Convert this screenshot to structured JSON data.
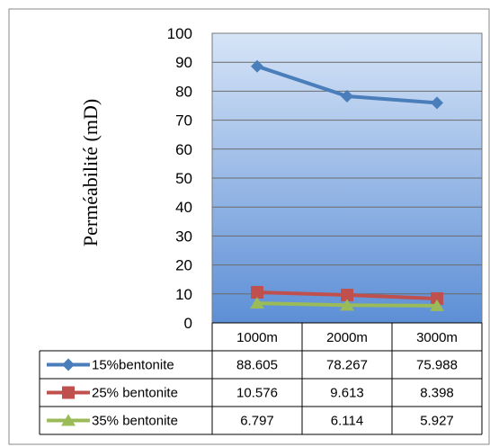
{
  "chart_data": {
    "type": "line",
    "ylabel": "Perméabilité (mD)",
    "xlabel": "",
    "title": "",
    "categories": [
      "1000m",
      "2000m",
      "3000m"
    ],
    "ylim": [
      0,
      100
    ],
    "yticks": [
      "0",
      "10",
      "20",
      "30",
      "40",
      "50",
      "60",
      "70",
      "80",
      "90",
      "100"
    ],
    "grid": true,
    "legend": "data-table",
    "series": [
      {
        "name": "15%bentonite",
        "values": [
          88.605,
          78.267,
          75.988
        ],
        "labels": [
          "88.605",
          "78.267",
          "75.988"
        ],
        "color": "#4a7ebb",
        "marker": "diamond"
      },
      {
        "name": "25% bentonite",
        "values": [
          10.576,
          9.613,
          8.398
        ],
        "labels": [
          "10.576",
          "9.613",
          "8.398"
        ],
        "color": "#c0504d",
        "marker": "square"
      },
      {
        "name": "35% bentonite",
        "values": [
          6.797,
          6.114,
          5.927
        ],
        "labels": [
          "6.797",
          "6.114",
          "5.927"
        ],
        "color": "#9bbb59",
        "marker": "triangle"
      }
    ],
    "plot_background": [
      "#d6e4f7",
      "#5d8fd6"
    ]
  }
}
